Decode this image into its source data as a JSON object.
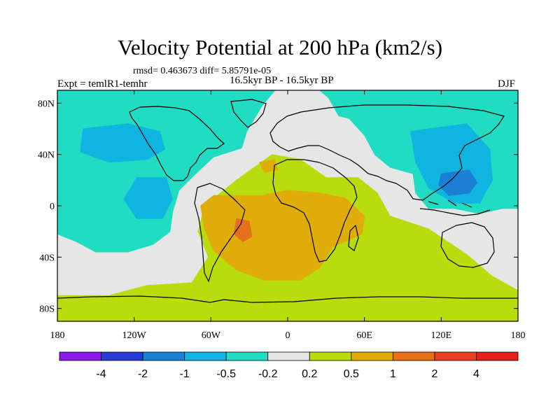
{
  "header": {
    "title": "Velocity Potential at 200 hPa (km2/s)",
    "stats": "rmsd= 0.463673 diff= 5.85791e-05",
    "period": "16.5kyr BP - 16.5kyr BP",
    "experiment": "Expt = temlR1-temhr",
    "season": "DJF"
  },
  "chart_data": {
    "type": "heatmap",
    "title": "Velocity Potential at 200 hPa (km2/s)",
    "projection": "cylindrical equidistant",
    "xlim": [
      -180,
      180
    ],
    "ylim": [
      -90,
      90
    ],
    "x_ticks": [
      {
        "value": -180,
        "label": "180"
      },
      {
        "value": -120,
        "label": "120W"
      },
      {
        "value": -60,
        "label": "60W"
      },
      {
        "value": 0,
        "label": "0"
      },
      {
        "value": 60,
        "label": "60E"
      },
      {
        "value": 120,
        "label": "120E"
      },
      {
        "value": 180,
        "label": "180"
      }
    ],
    "y_ticks": [
      {
        "value": 80,
        "label": "80N"
      },
      {
        "value": 40,
        "label": "40N"
      },
      {
        "value": 0,
        "label": "0"
      },
      {
        "value": -40,
        "label": "40S"
      },
      {
        "value": -80,
        "label": "80S"
      }
    ],
    "colorbar": {
      "labels": [
        "-4",
        "-2",
        "-1",
        "-0.5",
        "-0.2",
        "0.2",
        "0.5",
        "1",
        "2",
        "4"
      ],
      "colors": [
        "#8c1ae6",
        "#2a3ad6",
        "#1c7fd6",
        "#10b4e0",
        "#1fdcc2",
        "#e6e6e6",
        "#b9dc0c",
        "#e0ac0a",
        "#e6701a",
        "#e84020",
        "#e81e1e"
      ]
    },
    "regions": [
      {
        "level": "-0.2 to 0.2",
        "color": "#e6e6e6",
        "description": "background near-zero field",
        "polygons": [
          [
            [
              -180,
              -90
            ],
            [
              180,
              -90
            ],
            [
              180,
              90
            ],
            [
              -180,
              90
            ]
          ]
        ]
      },
      {
        "level": "-0.5 to -0.2",
        "color": "#1fdcc2",
        "description": "negative region over Pacific / Americas / N Atlantic",
        "polygons": [
          [
            [
              -180,
              90
            ],
            [
              -10,
              90
            ],
            [
              -20,
              78
            ],
            [
              -32,
              58
            ],
            [
              -36,
              45
            ],
            [
              -58,
              38
            ],
            [
              -72,
              25
            ],
            [
              -85,
              12
            ],
            [
              -90,
              -5
            ],
            [
              -92,
              -20
            ],
            [
              -105,
              -30
            ],
            [
              -125,
              -36
            ],
            [
              -150,
              -36
            ],
            [
              -165,
              -28
            ],
            [
              -180,
              -22
            ]
          ],
          [
            [
              25,
              90
            ],
            [
              180,
              90
            ],
            [
              180,
              -2
            ],
            [
              168,
              -2
            ],
            [
              150,
              -6
            ],
            [
              130,
              -2
            ],
            [
              110,
              -2
            ],
            [
              100,
              10
            ],
            [
              98,
              25
            ],
            [
              80,
              30
            ],
            [
              68,
              40
            ],
            [
              60,
              55
            ],
            [
              48,
              68
            ],
            [
              40,
              70
            ],
            [
              32,
              84
            ]
          ]
        ]
      },
      {
        "level": "-1 to -0.5",
        "color": "#10b4e0",
        "description": "deeper negative cells",
        "polygons": [
          [
            [
              -160,
              60
            ],
            [
              -125,
              64
            ],
            [
              -100,
              58
            ],
            [
              -96,
              44
            ],
            [
              -110,
              36
            ],
            [
              -140,
              34
            ],
            [
              -162,
              42
            ]
          ],
          [
            [
              -118,
              22
            ],
            [
              -95,
              22
            ],
            [
              -90,
              5
            ],
            [
              -98,
              -10
            ],
            [
              -118,
              -10
            ],
            [
              -128,
              5
            ]
          ],
          [
            [
              96,
              58
            ],
            [
              140,
              64
            ],
            [
              158,
              44
            ],
            [
              160,
              20
            ],
            [
              150,
              2
            ],
            [
              130,
              2
            ],
            [
              110,
              14
            ],
            [
              100,
              34
            ]
          ]
        ]
      },
      {
        "level": "-2 to -1",
        "color": "#1c7fd6",
        "description": "strongest negative cell near Philippines",
        "polygons": [
          [
            [
              120,
              25
            ],
            [
              142,
              28
            ],
            [
              148,
              18
            ],
            [
              142,
              10
            ],
            [
              126,
              8
            ],
            [
              118,
              16
            ]
          ]
        ]
      },
      {
        "level": "0.2 to 0.5",
        "color": "#b9dc0c",
        "description": "positive region over S Atlantic / Africa / Southern Ocean",
        "polygons": [
          [
            [
              -180,
              -70
            ],
            [
              -140,
              -70
            ],
            [
              -110,
              -62
            ],
            [
              -75,
              -60
            ],
            [
              -62,
              -40
            ],
            [
              -70,
              -20
            ],
            [
              -65,
              0
            ],
            [
              -40,
              20
            ],
            [
              -12,
              40
            ],
            [
              10,
              36
            ],
            [
              30,
              22
            ],
            [
              55,
              22
            ],
            [
              70,
              10
            ],
            [
              80,
              -8
            ],
            [
              110,
              -18
            ],
            [
              140,
              -38
            ],
            [
              160,
              -55
            ],
            [
              180,
              -66
            ],
            [
              180,
              -90
            ],
            [
              -180,
              -90
            ]
          ]
        ]
      },
      {
        "level": "0.5 to 1",
        "color": "#e0ac0a",
        "description": "positive core over S Atlantic / southern Africa",
        "polygons": [
          [
            [
              -68,
              0
            ],
            [
              -58,
              8
            ],
            [
              -20,
              8
            ],
            [
              0,
              12
            ],
            [
              25,
              10
            ],
            [
              45,
              6
            ],
            [
              60,
              -8
            ],
            [
              58,
              -22
            ],
            [
              35,
              -32
            ],
            [
              25,
              -48
            ],
            [
              10,
              -58
            ],
            [
              -18,
              -58
            ],
            [
              -40,
              -50
            ],
            [
              -58,
              -35
            ],
            [
              -65,
              -18
            ]
          ],
          [
            [
              -22,
              34
            ],
            [
              -10,
              36
            ],
            [
              -8,
              28
            ],
            [
              -18,
              26
            ]
          ]
        ]
      },
      {
        "level": "1 to 2",
        "color": "#e6701a",
        "description": "local maximum off Brazil",
        "polygons": [
          [
            [
              -40,
              -10
            ],
            [
              -30,
              -12
            ],
            [
              -28,
              -24
            ],
            [
              -35,
              -28
            ],
            [
              -42,
              -22
            ]
          ]
        ]
      }
    ]
  }
}
